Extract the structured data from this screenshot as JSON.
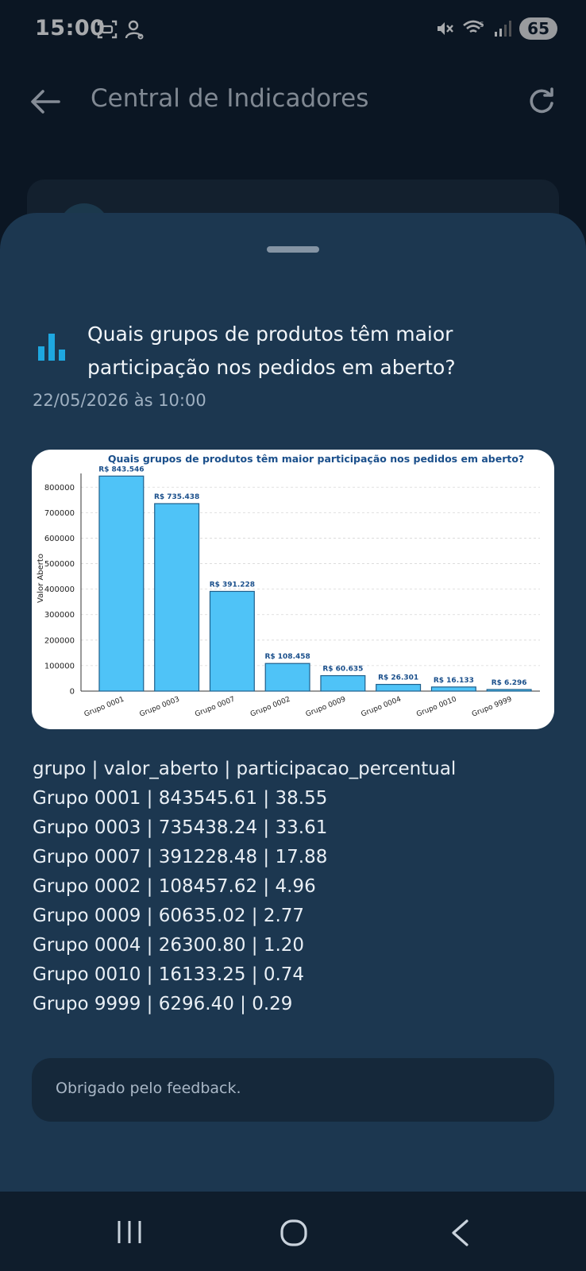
{
  "status_bar": {
    "time": "15:00",
    "battery": "65",
    "icons": [
      "screenshot-icon",
      "person-icon",
      "mute-icon",
      "wifi-icon",
      "signal-icon"
    ]
  },
  "header": {
    "title": "Central de Indicadores",
    "back_icon": "arrow-left",
    "refresh_icon": "refresh"
  },
  "sheet": {
    "question": "Quais grupos de produtos têm maior participação nos pedidos em aberto?",
    "timestamp": "22/05/2026 às 10:00",
    "table_header": "grupo | valor_aberto | participacao_percentual",
    "table_rows": [
      "Grupo 0001 | 843545.61 | 38.55",
      "Grupo 0003 | 735438.24 | 33.61",
      "Grupo 0007 | 391228.48 | 17.88",
      "Grupo 0002 | 108457.62 | 4.96",
      "Grupo 0009 | 60635.02 | 2.77",
      "Grupo 0004 | 26300.80 | 1.20",
      "Grupo 0010 | 16133.25 | 0.74",
      "Grupo 9999 | 6296.40 | 0.29"
    ],
    "feedback": "Obrigado pelo feedback."
  },
  "colors": {
    "accent": "#1ea7e0",
    "bar_fill": "#4fc3f7",
    "chart_title": "#1a4f8b",
    "sheet_bg": "#1c3750"
  },
  "chart_data": {
    "type": "bar",
    "title": "Quais grupos de produtos têm maior participação nos pedidos em aberto?",
    "xlabel": "",
    "ylabel": "Valor Aberto",
    "categories": [
      "Grupo 0001",
      "Grupo 0003",
      "Grupo 0007",
      "Grupo 0002",
      "Grupo 0009",
      "Grupo 0004",
      "Grupo 0010",
      "Grupo 9999"
    ],
    "values": [
      843545.61,
      735438.24,
      391228.48,
      108457.62,
      60635.02,
      26300.8,
      16133.25,
      6296.4
    ],
    "data_labels": [
      "R$ 843.546",
      "R$ 735.438",
      "R$ 391.228",
      "R$ 108.458",
      "R$ 60.635",
      "R$ 26.301",
      "R$ 16.133",
      "R$ 6.296"
    ],
    "yticks": [
      0,
      100000,
      200000,
      300000,
      400000,
      500000,
      600000,
      700000,
      800000
    ],
    "ylim": [
      0,
      885000
    ],
    "grid": true
  }
}
